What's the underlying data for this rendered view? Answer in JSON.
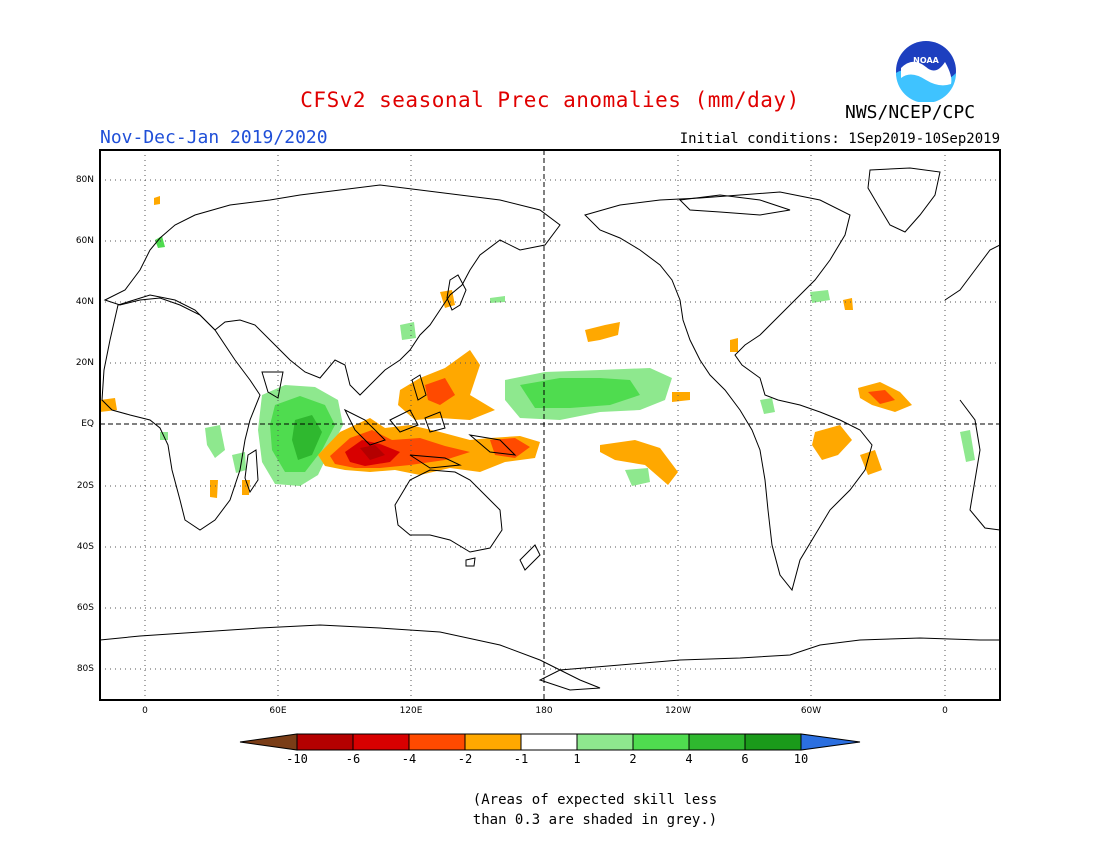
{
  "header": {
    "title": "CFSv2 seasonal Prec anomalies (mm/day)",
    "season": "Nov-Dec-Jan 2019/2020",
    "initial_conditions": "Initial conditions: 1Sep2019-10Sep2019",
    "agency": "NWS/NCEP/CPC",
    "logo_text": "NOAA"
  },
  "map": {
    "lat_ticks": [
      "80N",
      "60N",
      "40N",
      "20N",
      "EQ",
      "20S",
      "40S",
      "60S",
      "80S"
    ],
    "lon_ticks": [
      "0",
      "60E",
      "120E",
      "180",
      "120W",
      "60W",
      "0"
    ]
  },
  "colorbar": {
    "labels": [
      "-10",
      "-6",
      "-4",
      "-2",
      "-1",
      "1",
      "2",
      "4",
      "6",
      "10"
    ],
    "colors": [
      "#7a3d17",
      "#b40000",
      "#d80000",
      "#ff4a00",
      "#ffa800",
      "#ffffff",
      "#8ee88e",
      "#4fdc4f",
      "#2fb82f",
      "#1a9a1a",
      "#2b6fe0"
    ]
  },
  "footnote": {
    "line1": "(Areas of expected skill less",
    "line2": "than 0.3 are shaded in grey.)"
  },
  "colors": {
    "title": "#e00000",
    "season": "#1f4fd8",
    "dry_orange": "#ffa800",
    "dry_red": "#d80000",
    "wet_green": "#4fdc4f"
  }
}
